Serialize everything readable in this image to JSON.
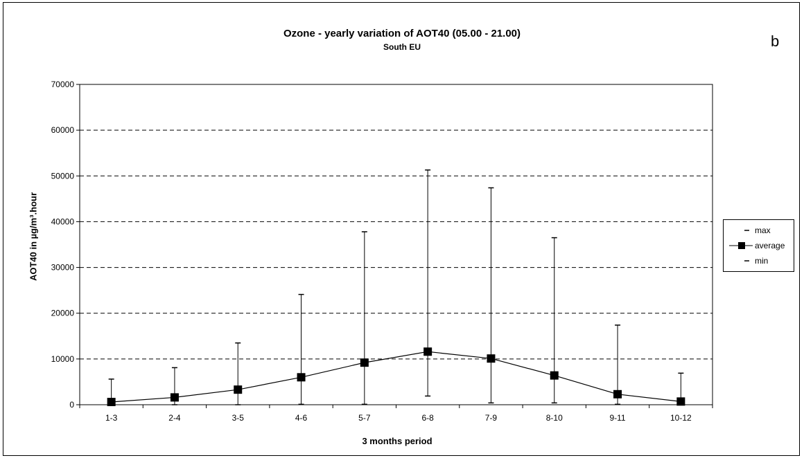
{
  "panel_letter": "b",
  "chart_data": {
    "type": "line",
    "title": "Ozone - yearly variation of AOT40 (05.00 - 21.00)",
    "subtitle": "South EU",
    "xlabel": "3 months period",
    "ylabel": "AOT40 in µg/m³.hour",
    "categories": [
      "1-3",
      "2-4",
      "3-5",
      "4-6",
      "5-7",
      "6-8",
      "7-9",
      "8-10",
      "9-11",
      "10-12"
    ],
    "ylim": [
      0,
      70000
    ],
    "yticks": [
      0,
      10000,
      20000,
      30000,
      40000,
      50000,
      60000,
      70000
    ],
    "grid": "horizontal dashed",
    "legend_position": "right",
    "series": [
      {
        "name": "max",
        "values": [
          5600,
          8100,
          13500,
          24100,
          37800,
          51300,
          47400,
          36500,
          17400,
          6900
        ]
      },
      {
        "name": "average",
        "values": [
          600,
          1600,
          3300,
          6000,
          9200,
          11600,
          10100,
          6400,
          2300,
          700
        ]
      },
      {
        "name": "min",
        "values": [
          0,
          0,
          0,
          100,
          100,
          1900,
          400,
          400,
          100,
          0
        ]
      }
    ],
    "colors": {
      "line": "#000000",
      "grid": "#000000",
      "background": "#ffffff"
    }
  }
}
